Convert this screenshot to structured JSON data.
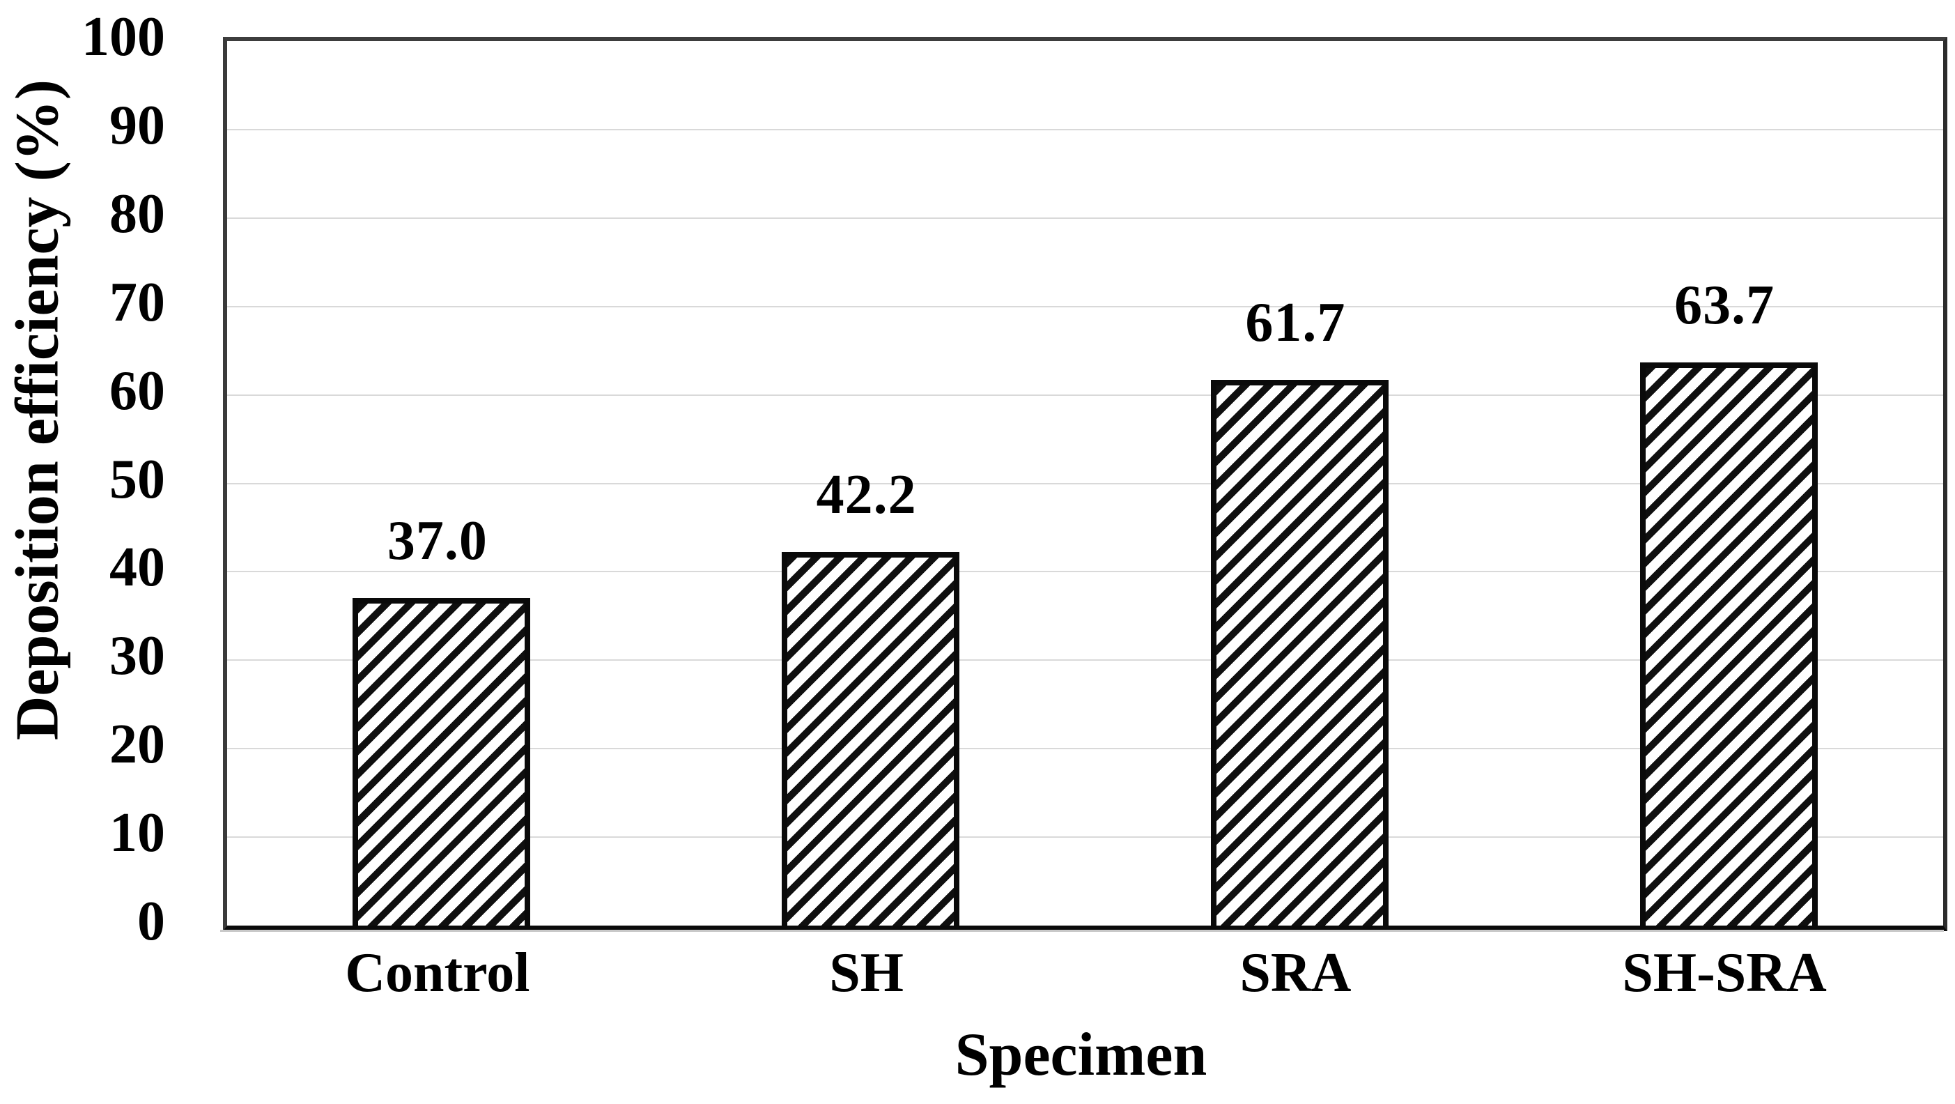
{
  "chart_data": {
    "type": "bar",
    "title": "",
    "categories": [
      "Control",
      "SH",
      "SRA",
      "SH-SRA"
    ],
    "values": [
      37.0,
      42.2,
      61.7,
      63.7
    ],
    "value_labels": [
      "37.0",
      "42.2",
      "61.7",
      "63.7"
    ],
    "xlabel": "Specimen",
    "ylabel": "Deposition efficiency (%)",
    "ylim": [
      0,
      100
    ],
    "ytick_interval": 10,
    "yticks": [
      0,
      10,
      20,
      30,
      40,
      50,
      60,
      70,
      80,
      90,
      100
    ],
    "grid": "horizontal-major",
    "legend_position": "none",
    "series_name": "Deposition efficiency",
    "bar_style": "white fill with black diagonal hatch, rising left-to-right",
    "colors": {
      "text": "#000000",
      "background": "#ffffff",
      "gridline": "#d9d9d9",
      "plot_border": "#3d3d3d",
      "axis_line": "#0a0a0a",
      "bar_border": "#0a0a0a",
      "hatch": "#0f0f0f"
    }
  }
}
